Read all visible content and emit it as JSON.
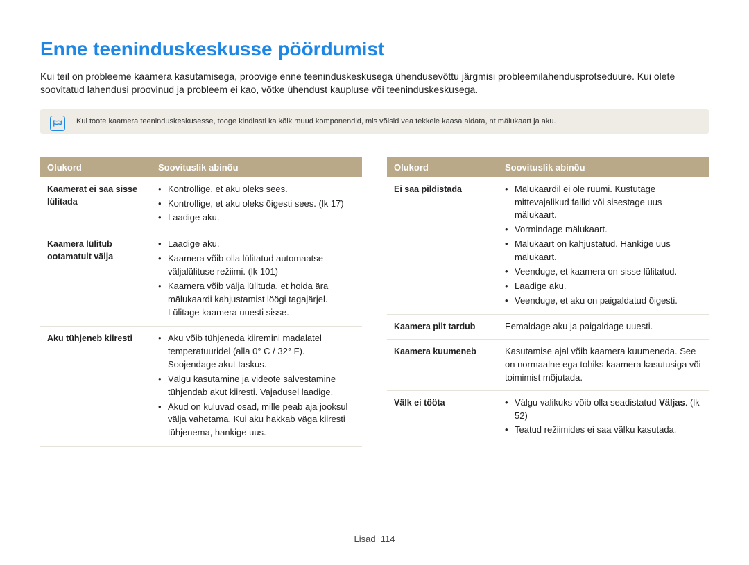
{
  "title": "Enne teeninduskeskusse pöördumist",
  "intro": "Kui teil on probleeme kaamera kasutamisega, proovige enne teeninduskeskusega ühendusevõttu järgmisi probleemilahendusprotseduure. Kui olete soovitatud lahendusi proovinud ja probleem ei kao, võtke ühendust kaupluse või teeninduskeskusega.",
  "note": "Kui toote kaamera teeninduskeskusesse, tooge kindlasti ka kõik muud komponendid, mis võisid vea tekkele kaasa aidata, nt mälukaart ja aku.",
  "headers": {
    "situation": "Olukord",
    "remedy": "Soovituslik abinõu"
  },
  "left": [
    {
      "situation": "Kaamerat ei saa sisse lülitada",
      "items": [
        "Kontrollige, et aku oleks sees.",
        "Kontrollige, et aku oleks õigesti sees. (lk 17)",
        "Laadige aku."
      ]
    },
    {
      "situation": "Kaamera lülitub ootamatult välja",
      "items": [
        "Laadige aku.",
        "Kaamera võib olla lülitatud automaatse väljalülituse režiimi. (lk 101)",
        "Kaamera võib välja lülituda, et hoida ära mälukaardi kahjustamist löögi tagajärjel. Lülitage kaamera uuesti sisse."
      ]
    },
    {
      "situation": "Aku tühjeneb kiiresti",
      "items": [
        "Aku võib tühjeneda kiiremini madalatel temperatuuridel (alla 0° C / 32° F). Soojendage akut taskus.",
        "Välgu kasutamine ja videote salvestamine tühjendab akut kiiresti. Vajadusel laadige.",
        "Akud on kuluvad osad, mille peab aja jooksul välja vahetama. Kui aku hakkab väga kiiresti tühjenema, hankige uus."
      ]
    }
  ],
  "right": [
    {
      "situation": "Ei saa pildistada",
      "items": [
        "Mälukaardil ei ole ruumi. Kustutage mittevajalikud failid või sisestage uus mälukaart.",
        "Vormindage mälukaart.",
        "Mälukaart on kahjustatud. Hankige uus mälukaart.",
        "Veenduge, et kaamera on sisse lülitatud.",
        "Laadige aku.",
        "Veenduge, et aku on paigaldatud õigesti."
      ]
    },
    {
      "situation": "Kaamera pilt tardub",
      "plain": "Eemaldage aku ja paigaldage uuesti."
    },
    {
      "situation": "Kaamera kuumeneb",
      "plain": "Kasutamise ajal võib kaamera kuumeneda. See on normaalne ega tohiks kaamera kasutusiga või toimimist mõjutada."
    },
    {
      "situation": "Välk ei tööta",
      "items_html": [
        "Välgu valikuks võib olla seadistatud <span class=\"bold-inline\">Väljas</span>. (lk 52)",
        "Teatud režiimides ei saa välku kasutada."
      ]
    }
  ],
  "footer": {
    "section": "Lisad",
    "page": "114"
  }
}
